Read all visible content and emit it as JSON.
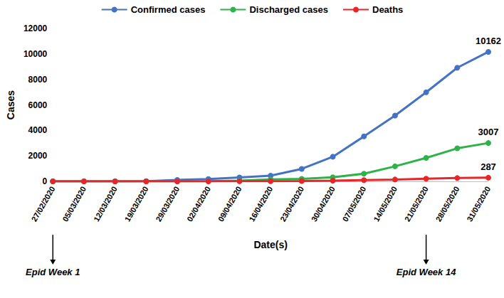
{
  "chart_data": {
    "type": "line",
    "x_label": "Date(s)",
    "y_label": "Cases",
    "categories": [
      "27/02/2020",
      "05/03/2020",
      "12/03/2020",
      "19/03/2020",
      "29/03/2020",
      "02/04/2020",
      "09/04/2020",
      "16/04/2020",
      "23/04/2020",
      "30/04/2020",
      "07/05/2020",
      "14/05/2020",
      "21/05/2020",
      "28/05/2020",
      "31/05/2020"
    ],
    "series": [
      {
        "name": "Confirmed cases",
        "color": "#4472c4",
        "marker": "circle",
        "values": [
          1,
          1,
          2,
          12,
          111,
          184,
          305,
          442,
          981,
          1932,
          3526,
          5162,
          6993,
          8915,
          10162
        ],
        "value_labels": [
          null,
          null,
          null,
          null,
          null,
          null,
          null,
          null,
          null,
          null,
          null,
          null,
          null,
          null,
          "10162"
        ]
      },
      {
        "name": "Discharged cases",
        "color": "#2eb24a",
        "marker": "circle",
        "values": [
          0,
          0,
          0,
          2,
          3,
          20,
          58,
          152,
          197,
          319,
          601,
          1180,
          1840,
          2592,
          3007
        ],
        "value_labels": [
          null,
          null,
          null,
          null,
          null,
          null,
          null,
          null,
          null,
          null,
          null,
          null,
          null,
          null,
          "3007"
        ]
      },
      {
        "name": "Deaths",
        "color": "#e8262a",
        "marker": "circle",
        "values": [
          0,
          0,
          0,
          0,
          2,
          2,
          7,
          13,
          31,
          58,
          94,
          145,
          211,
          259,
          287
        ],
        "value_labels": [
          null,
          null,
          null,
          null,
          null,
          null,
          null,
          null,
          null,
          null,
          null,
          null,
          null,
          null,
          "287"
        ]
      }
    ],
    "annotations": [
      {
        "text": "Epid Week 1",
        "x": "27/02/2020"
      },
      {
        "text": "Epid Week 14",
        "x": "21/05/2020"
      }
    ],
    "ylim": [
      0,
      12000
    ],
    "yticks": [
      0,
      2000,
      4000,
      6000,
      8000,
      10000,
      12000
    ],
    "grid": false,
    "legend": "top"
  }
}
